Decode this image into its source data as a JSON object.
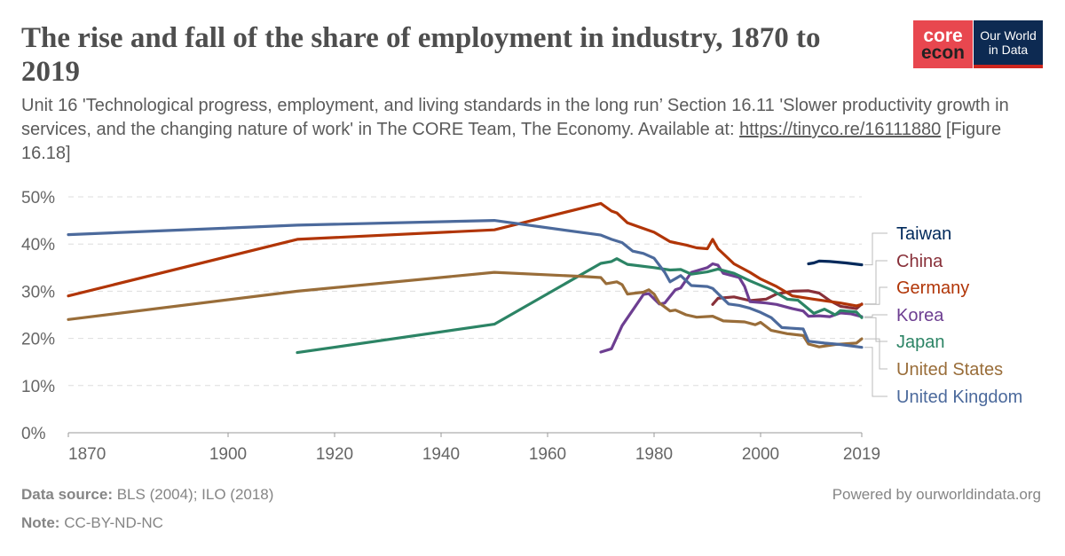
{
  "header": {
    "title": "The rise and fall of the share of employment in industry, 1870 to 2019",
    "subtitle_text": "Unit 16 'Technological progress, employment, and living standards in the long run’ Section 16.11 'Slower productivity growth in services, and the changing nature of work' in The CORE Team, The Economy. Available at: ",
    "subtitle_link": "https://tinyco.re/16111880",
    "subtitle_suffix": " [Figure 16.18]",
    "logo_core": [
      "core",
      "econ"
    ],
    "logo_owid": [
      "Our World",
      "in Data"
    ]
  },
  "footer": {
    "source_label": "Data source:",
    "source_text": "BLS (2004); ILO (2018)",
    "note_label": "Note:",
    "note_text": "CC-BY-ND-NC",
    "powered": "Powered by ourworldindata.org"
  },
  "chart_data": {
    "type": "line",
    "xlim": [
      1870,
      2019
    ],
    "ylim": [
      0,
      50
    ],
    "x_ticks": [
      1870,
      1900,
      1920,
      1940,
      1960,
      1980,
      2000,
      2019
    ],
    "y_ticks": [
      "0%",
      "10%",
      "20%",
      "30%",
      "40%",
      "50%"
    ],
    "y_tick_values": [
      0,
      10,
      20,
      30,
      40,
      50
    ],
    "grid": "horizontal dashed",
    "legend": "right, labels at line ends",
    "series": [
      {
        "name": "Taiwan",
        "color": "#00295b",
        "points": [
          [
            2009,
            35.8
          ],
          [
            2010,
            36
          ],
          [
            2011,
            36.4
          ],
          [
            2013,
            36.3
          ],
          [
            2016,
            36
          ],
          [
            2019,
            35.6
          ]
        ]
      },
      {
        "name": "China",
        "color": "#883039",
        "points": [
          [
            1991,
            27.2
          ],
          [
            1992,
            28.5
          ],
          [
            1995,
            28.8
          ],
          [
            1998,
            28
          ],
          [
            2001,
            28.3
          ],
          [
            2003,
            29.4
          ],
          [
            2006,
            30
          ],
          [
            2009,
            30.1
          ],
          [
            2011,
            29.6
          ],
          [
            2013,
            28
          ],
          [
            2015,
            26.8
          ],
          [
            2018,
            26.3
          ],
          [
            2019,
            27.3
          ]
        ]
      },
      {
        "name": "Germany",
        "color": "#b13507",
        "points": [
          [
            1870,
            29
          ],
          [
            1913,
            41
          ],
          [
            1950,
            43
          ],
          [
            1970,
            48.6
          ],
          [
            1972,
            47
          ],
          [
            1973,
            46.6
          ],
          [
            1975,
            44.5
          ],
          [
            1980,
            42.5
          ],
          [
            1983,
            40.5
          ],
          [
            1986,
            39.8
          ],
          [
            1988,
            39.2
          ],
          [
            1990,
            39
          ],
          [
            1991,
            41
          ],
          [
            1992,
            39
          ],
          [
            1995,
            35.8
          ],
          [
            1998,
            34
          ],
          [
            2000,
            32.6
          ],
          [
            2003,
            31
          ],
          [
            2006,
            29
          ],
          [
            2010,
            28.3
          ],
          [
            2015,
            27.5
          ],
          [
            2018,
            26.9
          ],
          [
            2019,
            27.2
          ]
        ]
      },
      {
        "name": "Korea",
        "color": "#6d3e91",
        "points": [
          [
            1970,
            17.1
          ],
          [
            1972,
            17.8
          ],
          [
            1974,
            22.7
          ],
          [
            1976,
            26
          ],
          [
            1978,
            29.3
          ],
          [
            1979,
            29.5
          ],
          [
            1981,
            27.3
          ],
          [
            1982,
            27.5
          ],
          [
            1984,
            30.3
          ],
          [
            1985,
            30.7
          ],
          [
            1987,
            34
          ],
          [
            1990,
            35
          ],
          [
            1991,
            35.8
          ],
          [
            1992,
            35.5
          ],
          [
            1993,
            33.8
          ],
          [
            1996,
            32.9
          ],
          [
            1997,
            31
          ],
          [
            1998,
            27.8
          ],
          [
            2001,
            27.5
          ],
          [
            2003,
            27.2
          ],
          [
            2006,
            26.3
          ],
          [
            2008,
            25.8
          ],
          [
            2009,
            24.7
          ],
          [
            2011,
            24.8
          ],
          [
            2013,
            24.6
          ],
          [
            2015,
            25.4
          ],
          [
            2017,
            25.2
          ],
          [
            2019,
            24.6
          ]
        ]
      },
      {
        "name": "Japan",
        "color": "#2c8465",
        "points": [
          [
            1913,
            17
          ],
          [
            1950,
            23
          ],
          [
            1970,
            35.9
          ],
          [
            1972,
            36.3
          ],
          [
            1973,
            36.9
          ],
          [
            1975,
            35.7
          ],
          [
            1980,
            35
          ],
          [
            1983,
            34.5
          ],
          [
            1985,
            34.6
          ],
          [
            1987,
            33.6
          ],
          [
            1990,
            34.1
          ],
          [
            1992,
            34.7
          ],
          [
            1995,
            33.8
          ],
          [
            1998,
            32.2
          ],
          [
            2002,
            30.3
          ],
          [
            2005,
            28.3
          ],
          [
            2007,
            28.1
          ],
          [
            2010,
            25.3
          ],
          [
            2012,
            26.2
          ],
          [
            2014,
            25
          ],
          [
            2015,
            25.9
          ],
          [
            2018,
            25.6
          ],
          [
            2019,
            24.4
          ]
        ]
      },
      {
        "name": "United States",
        "color": "#996d39",
        "points": [
          [
            1870,
            24
          ],
          [
            1913,
            30
          ],
          [
            1950,
            34
          ],
          [
            1967,
            33.1
          ],
          [
            1970,
            32.9
          ],
          [
            1971,
            31.6
          ],
          [
            1973,
            32
          ],
          [
            1974,
            31.4
          ],
          [
            1975,
            29.4
          ],
          [
            1978,
            29.8
          ],
          [
            1979,
            30.3
          ],
          [
            1980,
            29.4
          ],
          [
            1981,
            27.5
          ],
          [
            1983,
            25.8
          ],
          [
            1984,
            26
          ],
          [
            1986,
            25
          ],
          [
            1988,
            24.5
          ],
          [
            1991,
            24.7
          ],
          [
            1993,
            23.7
          ],
          [
            1997,
            23.5
          ],
          [
            1999,
            22.9
          ],
          [
            2000,
            23.4
          ],
          [
            2002,
            21.7
          ],
          [
            2005,
            21
          ],
          [
            2008,
            20.6
          ],
          [
            2009,
            18.8
          ],
          [
            2011,
            18.2
          ],
          [
            2014,
            18.7
          ],
          [
            2018,
            19
          ],
          [
            2019,
            19.9
          ]
        ]
      },
      {
        "name": "United Kingdom",
        "color": "#4c6a9c",
        "points": [
          [
            1870,
            42
          ],
          [
            1913,
            44
          ],
          [
            1950,
            45
          ],
          [
            1970,
            41.9
          ],
          [
            1972,
            41
          ],
          [
            1974,
            40.3
          ],
          [
            1976,
            38.5
          ],
          [
            1978,
            38
          ],
          [
            1980,
            37
          ],
          [
            1982,
            34
          ],
          [
            1983,
            32
          ],
          [
            1985,
            33.3
          ],
          [
            1987,
            31.2
          ],
          [
            1990,
            31
          ],
          [
            1991,
            30.6
          ],
          [
            1992,
            29.5
          ],
          [
            1994,
            27.3
          ],
          [
            1996,
            27
          ],
          [
            1998,
            26.4
          ],
          [
            2000,
            25.5
          ],
          [
            2002,
            24.4
          ],
          [
            2004,
            22.3
          ],
          [
            2008,
            22
          ],
          [
            2009,
            19.4
          ],
          [
            2012,
            19
          ],
          [
            2015,
            18.7
          ],
          [
            2019,
            18.1
          ]
        ]
      }
    ]
  }
}
